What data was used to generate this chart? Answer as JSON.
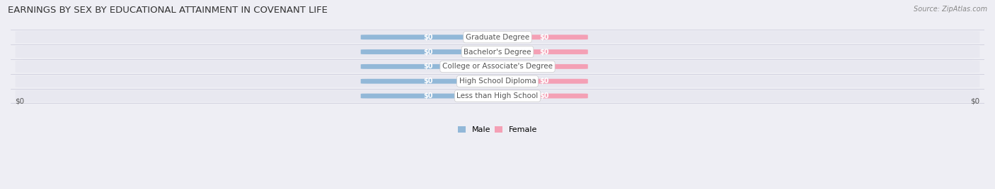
{
  "title": "EARNINGS BY SEX BY EDUCATIONAL ATTAINMENT IN COVENANT LIFE",
  "source": "Source: ZipAtlas.com",
  "categories": [
    "Less than High School",
    "High School Diploma",
    "College or Associate's Degree",
    "Bachelor's Degree",
    "Graduate Degree"
  ],
  "male_values": [
    0,
    0,
    0,
    0,
    0
  ],
  "female_values": [
    0,
    0,
    0,
    0,
    0
  ],
  "male_color": "#92b8d8",
  "female_color": "#f4a0b5",
  "category_label_color": "#555555",
  "background_color": "#eeeef4",
  "row_bg_color": "#e4e4ee",
  "title_color": "#333333",
  "source_color": "#888888",
  "axis_label": "$0",
  "title_fontsize": 9.5,
  "source_fontsize": 7,
  "label_fontsize": 7,
  "category_fontsize": 7.5,
  "legend_fontsize": 8,
  "axis_fontsize": 7.5
}
